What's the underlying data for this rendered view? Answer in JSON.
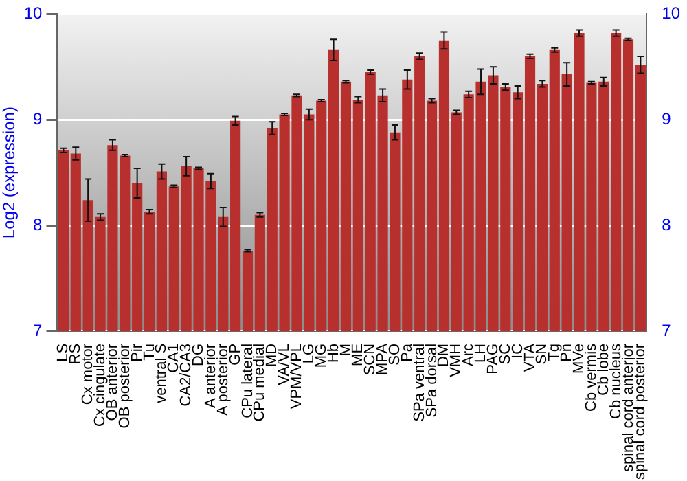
{
  "chart_data": {
    "type": "bar",
    "ylabel": "Log2 (expression)",
    "categories": [
      "LS",
      "RS",
      "Cx motor",
      "Cx cingulate",
      "OB anterior",
      "OB posterior",
      "Pir",
      "Tu",
      "ventral S",
      "CA1",
      "CA2/CA3",
      "DG",
      "A anterior",
      "A posterior",
      "GP",
      "CPu lateral",
      "CPu medial",
      "MD",
      "VA/VL",
      "VPM/VPL",
      "LG",
      "MG",
      "Hb",
      "M",
      "ME",
      "SCN",
      "MPA",
      "SO",
      "Pa",
      "SPa ventral",
      "SPa dorsal",
      "DM",
      "VMH",
      "Arc",
      "LH",
      "PAG",
      "SC",
      "IC",
      "VTA",
      "SN",
      "Tg",
      "Pn",
      "MVe",
      "Cb vermis",
      "Cb lobe",
      "Cb nucleus",
      "spinal cord anterior",
      "spinal cord posterior"
    ],
    "series": [
      {
        "color": "#b8302e",
        "values": [
          8.71,
          8.68,
          8.24,
          8.08,
          8.76,
          8.66,
          8.4,
          8.13,
          8.51,
          8.37,
          8.56,
          8.54,
          8.42,
          8.08,
          8.99,
          7.76,
          8.1,
          8.92,
          9.05,
          9.23,
          9.05,
          9.18,
          9.66,
          9.36,
          9.19,
          9.45,
          9.23,
          8.88,
          9.38,
          9.6,
          9.18,
          9.75,
          9.07,
          9.24,
          9.36,
          9.42,
          9.31,
          9.26,
          9.6,
          9.34,
          9.66,
          9.43,
          9.82,
          9.35,
          9.36,
          9.82,
          9.76,
          9.52
        ],
        "errors": [
          0.02,
          0.06,
          0.2,
          0.03,
          0.05,
          0.01,
          0.14,
          0.02,
          0.07,
          0.01,
          0.09,
          0.01,
          0.07,
          0.09,
          0.04,
          0.01,
          0.02,
          0.06,
          0.01,
          0.01,
          0.05,
          0.01,
          0.1,
          0.01,
          0.03,
          0.02,
          0.06,
          0.07,
          0.09,
          0.03,
          0.02,
          0.08,
          0.02,
          0.03,
          0.12,
          0.08,
          0.03,
          0.06,
          0.02,
          0.03,
          0.02,
          0.11,
          0.03,
          0.01,
          0.04,
          0.03,
          0.01,
          0.08
        ]
      }
    ],
    "ylim": [
      7,
      10
    ],
    "yticks": [
      7,
      8,
      9,
      10
    ],
    "y2lim": [
      7,
      10
    ],
    "y2ticks": [
      7,
      8,
      9,
      10
    ],
    "grid": "y",
    "legend": false
  }
}
